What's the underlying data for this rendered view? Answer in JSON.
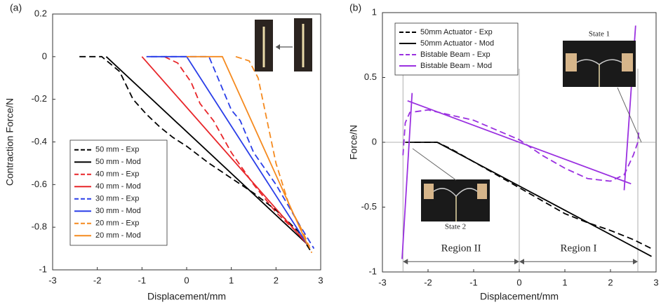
{
  "chart_data": [
    {
      "type": "line",
      "panel_label": "(a)",
      "xlabel": "Displacement/mm",
      "ylabel": "Contraction Force/N",
      "xlim": [
        -3,
        3
      ],
      "ylim": [
        -1,
        0.2
      ],
      "xticks": [
        -3,
        -2,
        -1,
        0,
        1,
        2,
        3
      ],
      "yticks": [
        -1,
        -0.8,
        -0.6,
        -0.4,
        -0.2,
        0,
        0.2
      ],
      "legend": "lower left",
      "series": [
        {
          "name": "50 mm - Exp",
          "color": "#000000",
          "dash": true,
          "x": [
            -2.4,
            -1.9,
            -1.5,
            -1.2,
            -0.9,
            -0.6,
            -0.3,
            0,
            0.5,
            1,
            1.5,
            2,
            2.5,
            2.8
          ],
          "values": [
            0,
            0,
            -0.07,
            -0.2,
            -0.27,
            -0.33,
            -0.38,
            -0.42,
            -0.5,
            -0.57,
            -0.64,
            -0.72,
            -0.82,
            -0.92
          ]
        },
        {
          "name": "50 mm - Mod",
          "color": "#000000",
          "dash": false,
          "x": [
            -1.8,
            2.7
          ],
          "values": [
            0,
            -0.88
          ]
        },
        {
          "name": "40 mm - Exp",
          "color": "#e8262a",
          "dash": true,
          "x": [
            -0.5,
            -0.2,
            0.1,
            0.3,
            0.6,
            1,
            1.5,
            2,
            2.5,
            2.8
          ],
          "values": [
            0,
            -0.03,
            -0.12,
            -0.22,
            -0.3,
            -0.45,
            -0.6,
            -0.73,
            -0.83,
            -0.9
          ]
        },
        {
          "name": "40 mm - Mod",
          "color": "#e8262a",
          "dash": false,
          "x": [
            -1,
            2.7
          ],
          "values": [
            0,
            -0.88
          ]
        },
        {
          "name": "30 mm - Exp",
          "color": "#2a3ee8",
          "dash": true,
          "x": [
            -0.8,
            0.5,
            0.7,
            1,
            1.2,
            1.5,
            2,
            2.5,
            2.85
          ],
          "values": [
            0,
            0,
            -0.1,
            -0.25,
            -0.3,
            -0.45,
            -0.6,
            -0.78,
            -0.9
          ]
        },
        {
          "name": "30 mm - Mod",
          "color": "#2a3ee8",
          "dash": false,
          "x": [
            -0.9,
            0,
            2.7
          ],
          "values": [
            0,
            0,
            -0.88
          ]
        },
        {
          "name": "20 mm - Exp",
          "color": "#f58a1f",
          "dash": true,
          "x": [
            1.1,
            1.4,
            1.6,
            1.8,
            2,
            2.3,
            2.6,
            2.8
          ],
          "values": [
            0,
            -0.02,
            -0.1,
            -0.3,
            -0.5,
            -0.7,
            -0.82,
            -0.92
          ]
        },
        {
          "name": "20 mm - Mod",
          "color": "#f58a1f",
          "dash": false,
          "x": [
            0,
            0.8,
            2.7
          ],
          "values": [
            0,
            0,
            -0.88
          ]
        }
      ]
    },
    {
      "type": "line",
      "panel_label": "(b)",
      "xlabel": "Displacement/mm",
      "ylabel": "Force/N",
      "xlim": [
        -3,
        3
      ],
      "ylim": [
        -1,
        1
      ],
      "xticks": [
        -3,
        -2,
        -1,
        0,
        1,
        2,
        3
      ],
      "yticks": [
        -1,
        -0.5,
        0,
        0.5,
        1
      ],
      "legend": "upper left",
      "vlines": [
        -2.55,
        0,
        2.6
      ],
      "hline": 0,
      "region_labels": [
        "Region II",
        "Region I"
      ],
      "annotations": [
        "State 1",
        "State 2"
      ],
      "series": [
        {
          "name": "50mm Actuator - Exp",
          "color": "#000000",
          "dash": true,
          "x": [
            -2.3,
            -1.8,
            -1.5,
            -1,
            0,
            0.5,
            1,
            1.5,
            2,
            2.5,
            2.9
          ],
          "values": [
            0,
            0,
            -0.05,
            -0.15,
            -0.35,
            -0.45,
            -0.55,
            -0.62,
            -0.68,
            -0.75,
            -0.82
          ]
        },
        {
          "name": "50mm Actuator - Mod",
          "color": "#000000",
          "dash": false,
          "x": [
            -2.5,
            -1.8,
            2.9
          ],
          "values": [
            0,
            0,
            -0.88
          ]
        },
        {
          "name": "Bistable Beam - Exp",
          "color": "#9a30e0",
          "dash": true,
          "x": [
            -2.55,
            -2.5,
            -2.4,
            -2,
            -1,
            0,
            0.5,
            1,
            1.5,
            2,
            2.3,
            2.5,
            2.6,
            2.62
          ],
          "values": [
            -0.1,
            0.15,
            0.23,
            0.25,
            0.17,
            0.02,
            -0.1,
            -0.2,
            -0.28,
            -0.3,
            -0.25,
            -0.1,
            0,
            0.08
          ]
        },
        {
          "name": "Bistable Beam - Mod",
          "color": "#9a30e0",
          "dash": false,
          "x": [
            -2.57,
            -2.35,
            null,
            -2.45,
            2.45,
            null,
            2.3,
            2.55
          ],
          "values": [
            -0.9,
            0.38,
            null,
            0.32,
            -0.32,
            null,
            -0.37,
            0.9
          ]
        }
      ]
    }
  ]
}
